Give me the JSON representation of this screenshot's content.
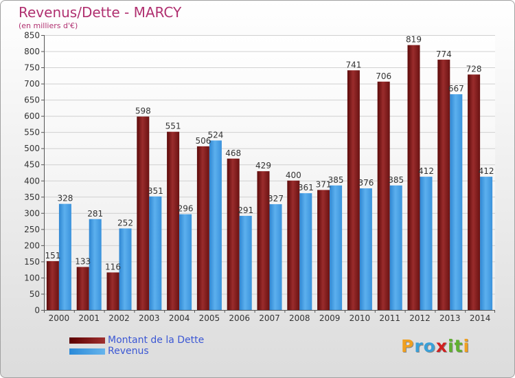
{
  "chart_data": {
    "type": "bar",
    "title": "Revenus/Dette - MARCY",
    "subtitle": "(en milliers d'€)",
    "categories": [
      "2000",
      "2001",
      "2002",
      "2003",
      "2004",
      "2005",
      "2006",
      "2007",
      "2008",
      "2009",
      "2010",
      "2011",
      "2012",
      "2013",
      "2014"
    ],
    "series": [
      {
        "name": "Montant de la Dette",
        "values": [
          151,
          133,
          116,
          598,
          551,
          506,
          468,
          429,
          400,
          371,
          741,
          706,
          819,
          774,
          728
        ],
        "color": "#7a1a1a"
      },
      {
        "name": "Revenus",
        "values": [
          328,
          281,
          252,
          351,
          296,
          524,
          291,
          327,
          361,
          385,
          376,
          385,
          412,
          667,
          412
        ],
        "color": "#3a9ae0"
      }
    ],
    "y_ticks": [
      0,
      50,
      100,
      150,
      200,
      250,
      300,
      350,
      400,
      450,
      500,
      550,
      600,
      650,
      700,
      750,
      800,
      850
    ],
    "ylim": [
      0,
      850
    ],
    "grid": true,
    "legend_position": "bottom-left"
  },
  "logo": {
    "text": "Proxiti",
    "letters": [
      {
        "ch": "P",
        "color": "#f0a020"
      },
      {
        "ch": "r",
        "color": "#3aa0d8"
      },
      {
        "ch": "o",
        "color": "#3aa0d8"
      },
      {
        "ch": "x",
        "color": "#d02020"
      },
      {
        "ch": "i",
        "color": "#60b030"
      },
      {
        "ch": "t",
        "color": "#60b030"
      },
      {
        "ch": "i",
        "color": "#f0a020"
      }
    ]
  }
}
